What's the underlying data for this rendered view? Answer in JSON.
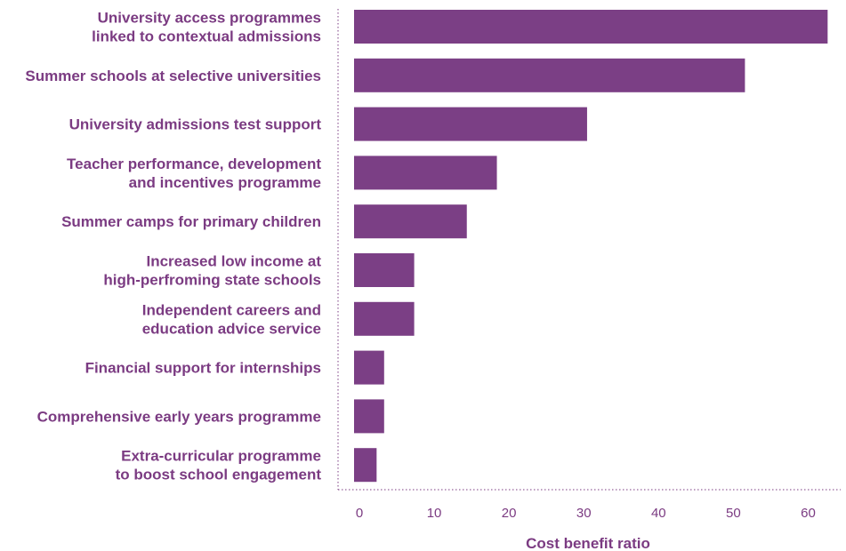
{
  "chart_data": {
    "type": "bar",
    "orientation": "horizontal",
    "title": "",
    "xlabel": "Cost benefit ratio",
    "ylabel": "",
    "xlim": [
      0,
      63
    ],
    "xticks": [
      0,
      10,
      20,
      30,
      40,
      50,
      60
    ],
    "grid": false,
    "legend": "none",
    "colors": {
      "bar": "#7b3f85",
      "text": "#7b3b82",
      "axis": "#7b3b82"
    },
    "categories": [
      [
        "University access programmes",
        "linked to contextual admissions"
      ],
      [
        "Summer schools at selective universities"
      ],
      [
        "University admissions test support"
      ],
      [
        "Teacher performance, development",
        "and incentives programme"
      ],
      [
        "Summer camps for primary children"
      ],
      [
        "Increased low income at",
        "high-perfroming state schools"
      ],
      [
        "Independent careers and",
        "education advice service"
      ],
      [
        "Financial support for internships"
      ],
      [
        "Comprehensive early years programme"
      ],
      [
        "Extra-curricular programme",
        "to boost school engagement"
      ]
    ],
    "values": [
      63,
      52,
      31,
      19,
      15,
      8,
      8,
      4,
      4,
      3
    ]
  }
}
